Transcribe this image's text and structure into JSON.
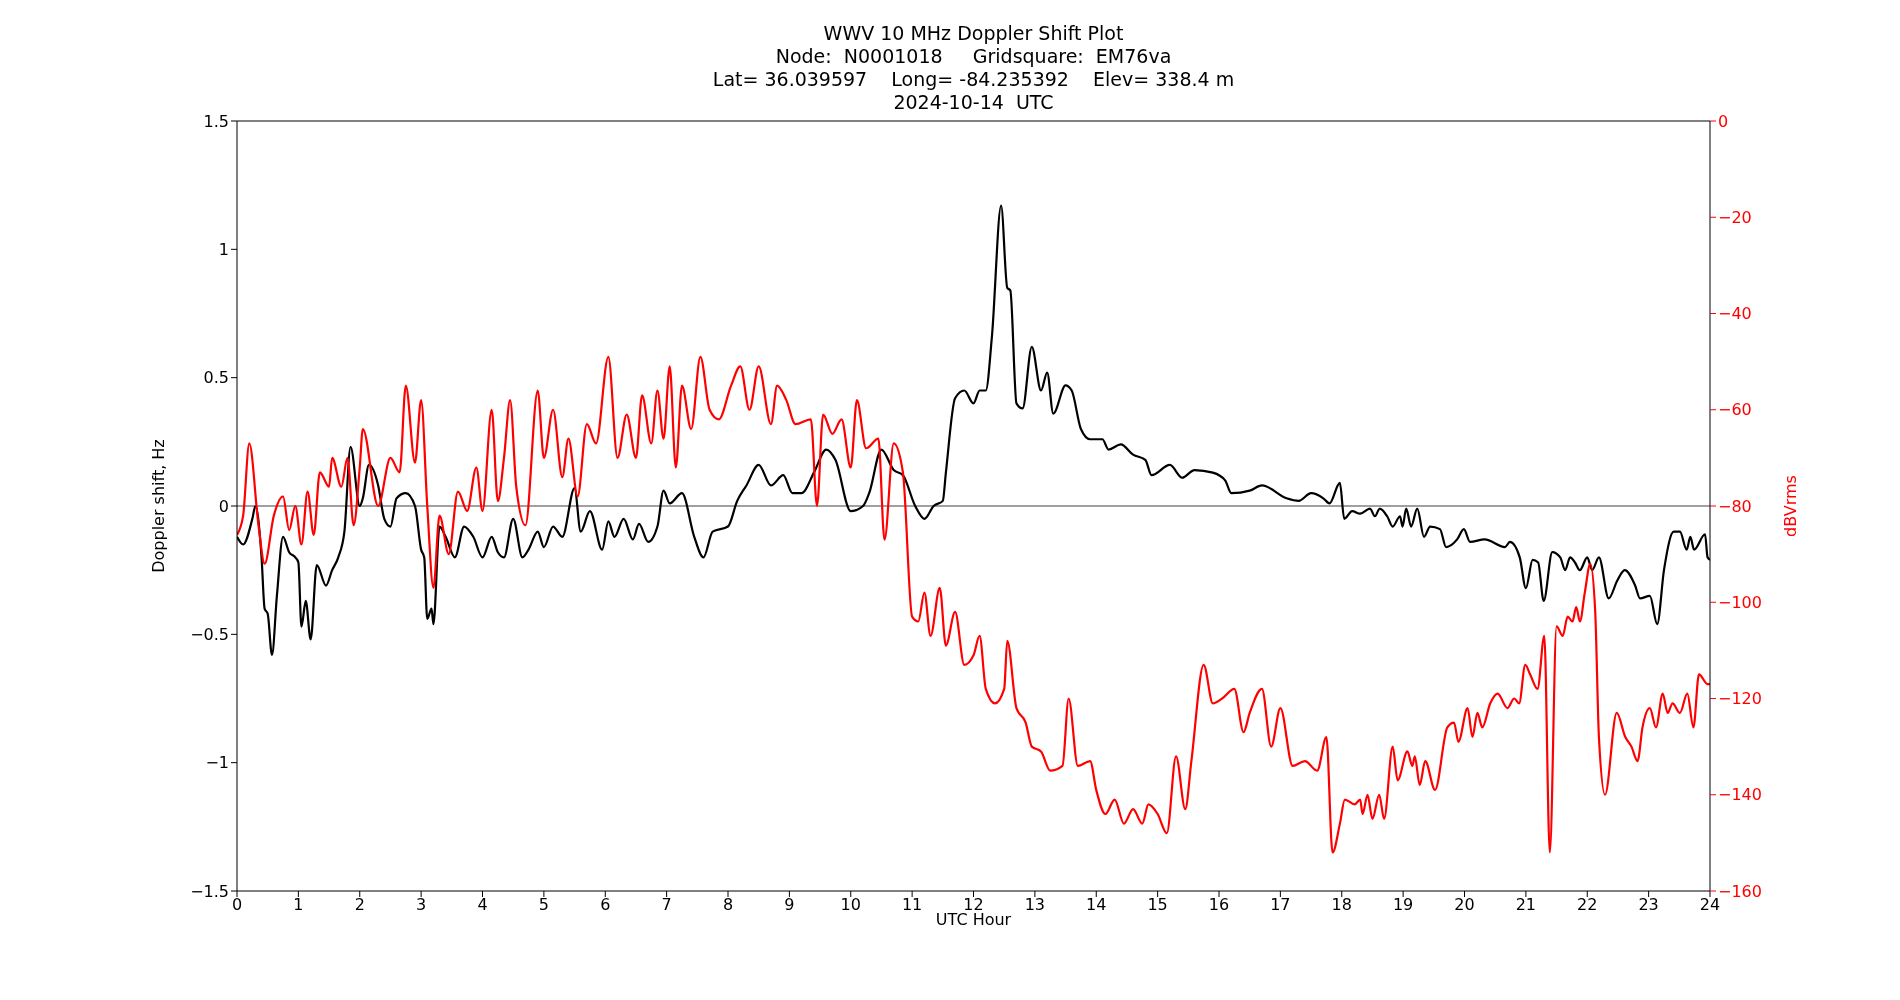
{
  "chart_data": {
    "type": "line",
    "title": "WWV 10 MHz Doppler Shift Plot\nNode:  N0001018     Gridsquare:  EM76va\nLat= 36.039597    Long= -84.235392    Elev= 338.4 m\n2024-10-14  UTC",
    "xlabel": "UTC Hour",
    "ylabel": "Doppler shift, Hz",
    "y2label": "dBVrms",
    "xlim": [
      0,
      24
    ],
    "xticks": [
      0,
      1,
      2,
      3,
      4,
      5,
      6,
      7,
      8,
      9,
      10,
      11,
      12,
      13,
      14,
      15,
      16,
      17,
      18,
      19,
      20,
      21,
      22,
      23,
      24
    ],
    "ylim": [
      -1.5,
      1.5
    ],
    "yticks": [
      -1.5,
      -1,
      -0.5,
      0,
      0.5,
      1,
      1.5
    ],
    "y2lim": [
      -160,
      0
    ],
    "y2ticks": [
      -160,
      -140,
      -120,
      -100,
      -80,
      -60,
      -40,
      -20,
      0
    ],
    "line_style": "solid",
    "ref_lines": [
      {
        "axis": "y",
        "value": 0,
        "color": "#808080"
      }
    ],
    "series": [
      {
        "color": "#000000",
        "x": [
          0,
          0.1,
          0.25,
          0.3,
          0.4,
          0.45,
          0.5,
          0.57,
          0.65,
          0.75,
          0.85,
          0.95,
          1,
          1.05,
          1.12,
          1.2,
          1.3,
          1.45,
          1.55,
          1.65,
          1.75,
          1.85,
          2,
          2.05,
          2.15,
          2.3,
          2.4,
          2.5,
          2.6,
          2.75,
          2.9,
          3,
          3.05,
          3.1,
          3.17,
          3.2,
          3.3,
          3.4,
          3.55,
          3.7,
          3.85,
          4,
          4.15,
          4.25,
          4.35,
          4.5,
          4.65,
          4.75,
          4.9,
          5,
          5.15,
          5.3,
          5.5,
          5.6,
          5.75,
          5.95,
          6.05,
          6.15,
          6.3,
          6.45,
          6.55,
          6.7,
          6.85,
          6.95,
          7.05,
          7.25,
          7.45,
          7.6,
          7.75,
          8,
          8.15,
          8.3,
          8.5,
          8.7,
          8.9,
          9.05,
          9.2,
          9.4,
          9.6,
          9.75,
          10,
          10.2,
          10.3,
          10.5,
          10.7,
          10.85,
          11.05,
          11.2,
          11.35,
          11.5,
          11.55,
          11.7,
          11.85,
          12,
          12.1,
          12.2,
          12.3,
          12.45,
          12.55,
          12.6,
          12.7,
          12.8,
          12.95,
          13.1,
          13.2,
          13.3,
          13.5,
          13.6,
          13.75,
          13.9,
          14.1,
          14.2,
          14.4,
          14.6,
          14.8,
          14.9,
          15.2,
          15.4,
          15.6,
          15.9,
          16.1,
          16.2,
          16.5,
          16.7,
          17.1,
          17.3,
          17.5,
          17.7,
          17.8,
          17.97,
          18.04,
          18.17,
          18.3,
          18.46,
          18.54,
          18.62,
          18.74,
          18.83,
          18.95,
          18.99,
          19.05,
          19.13,
          19.23,
          19.34,
          19.44,
          19.6,
          19.7,
          19.88,
          19.99,
          20.09,
          20.33,
          20.66,
          20.74,
          20.9,
          21,
          21.11,
          21.2,
          21.29,
          21.43,
          21.56,
          21.64,
          21.72,
          21.8,
          21.88,
          22,
          22.08,
          22.19,
          22.35,
          22.49,
          22.61,
          22.78,
          22.86,
          23.02,
          23.14,
          23.25,
          23.41,
          23.51,
          23.62,
          23.68,
          23.74,
          23.92,
          23.96,
          24
        ],
        "values": [
          -0.12,
          -0.15,
          -0.05,
          0,
          -0.2,
          -0.4,
          -0.42,
          -0.58,
          -0.35,
          -0.12,
          -0.18,
          -0.2,
          -0.22,
          -0.47,
          -0.37,
          -0.52,
          -0.23,
          -0.31,
          -0.25,
          -0.2,
          -0.1,
          0.23,
          0,
          0.03,
          0.16,
          0.08,
          -0.05,
          -0.08,
          0.03,
          0.05,
          0,
          -0.17,
          -0.2,
          -0.44,
          -0.4,
          -0.46,
          -0.08,
          -0.12,
          -0.2,
          -0.08,
          -0.12,
          -0.2,
          -0.12,
          -0.18,
          -0.2,
          -0.05,
          -0.2,
          -0.17,
          -0.1,
          -0.16,
          -0.08,
          -0.12,
          0.07,
          -0.1,
          -0.02,
          -0.17,
          -0.06,
          -0.12,
          -0.05,
          -0.13,
          -0.07,
          -0.14,
          -0.08,
          0.06,
          0.01,
          0.05,
          -0.12,
          -0.2,
          -0.1,
          -0.08,
          0.02,
          0.08,
          0.16,
          0.08,
          0.12,
          0.05,
          0.05,
          0.13,
          0.22,
          0.18,
          -0.02,
          0,
          0.05,
          0.22,
          0.14,
          0.12,
          0,
          -0.05,
          0,
          0.02,
          0.13,
          0.42,
          0.45,
          0.4,
          0.45,
          0.45,
          0.66,
          1.17,
          0.85,
          0.84,
          0.4,
          0.38,
          0.62,
          0.45,
          0.52,
          0.36,
          0.47,
          0.45,
          0.3,
          0.26,
          0.26,
          0.22,
          0.24,
          0.2,
          0.18,
          0.12,
          0.16,
          0.11,
          0.14,
          0.13,
          0.1,
          0.05,
          0.06,
          0.08,
          0.03,
          0.02,
          0.05,
          0.03,
          0.01,
          0.09,
          -0.05,
          -0.02,
          -0.03,
          -0.01,
          -0.04,
          -0.01,
          -0.04,
          -0.08,
          -0.04,
          -0.08,
          -0.01,
          -0.08,
          -0.01,
          -0.12,
          -0.08,
          -0.09,
          -0.16,
          -0.13,
          -0.09,
          -0.14,
          -0.13,
          -0.16,
          -0.14,
          -0.2,
          -0.32,
          -0.21,
          -0.22,
          -0.37,
          -0.18,
          -0.2,
          -0.25,
          -0.2,
          -0.22,
          -0.25,
          -0.2,
          -0.25,
          -0.2,
          -0.36,
          -0.29,
          -0.25,
          -0.31,
          -0.36,
          -0.35,
          -0.46,
          -0.25,
          -0.1,
          -0.1,
          -0.17,
          -0.12,
          -0.17,
          -0.11,
          -0.2,
          -0.21
        ]
      },
      {
        "color": "#ff0000",
        "axis": "y2",
        "x": [
          0,
          0.1,
          0.2,
          0.35,
          0.45,
          0.6,
          0.75,
          0.85,
          0.95,
          1.05,
          1.15,
          1.25,
          1.35,
          1.5,
          1.55,
          1.7,
          1.8,
          1.9,
          2,
          2.05,
          2.3,
          2.5,
          2.65,
          2.75,
          2.9,
          3,
          3.1,
          3.2,
          3.3,
          3.45,
          3.6,
          3.75,
          3.9,
          4,
          4.15,
          4.25,
          4.35,
          4.45,
          4.55,
          4.7,
          4.9,
          5,
          5.15,
          5.3,
          5.4,
          5.55,
          5.7,
          5.85,
          6.05,
          6.2,
          6.35,
          6.5,
          6.6,
          6.75,
          6.85,
          6.95,
          7.05,
          7.15,
          7.25,
          7.4,
          7.55,
          7.7,
          7.85,
          8.05,
          8.2,
          8.35,
          8.5,
          8.7,
          8.8,
          8.95,
          9.1,
          9.35,
          9.45,
          9.55,
          9.7,
          9.85,
          10,
          10.1,
          10.25,
          10.45,
          10.55,
          10.7,
          10.85,
          11,
          11.1,
          11.2,
          11.3,
          11.45,
          11.55,
          11.7,
          11.85,
          12,
          12.1,
          12.2,
          12.35,
          12.5,
          12.55,
          12.7,
          12.85,
          12.95,
          13.1,
          13.25,
          13.45,
          13.55,
          13.7,
          13.9,
          14,
          14.15,
          14.3,
          14.45,
          14.6,
          14.75,
          14.85,
          15,
          15.15,
          15.3,
          15.45,
          15.55,
          15.75,
          15.9,
          16.05,
          16.25,
          16.4,
          16.5,
          16.7,
          16.85,
          17,
          17.2,
          17.4,
          17.6,
          17.75,
          17.85,
          17.97,
          18.05,
          18.21,
          18.3,
          18.34,
          18.42,
          18.5,
          18.61,
          18.69,
          18.83,
          18.91,
          19.07,
          19.15,
          19.19,
          19.27,
          19.36,
          19.52,
          19.72,
          19.83,
          19.9,
          20.05,
          20.13,
          20.21,
          20.29,
          20.42,
          20.54,
          20.7,
          20.81,
          20.89,
          20.99,
          21.07,
          21.19,
          21.3,
          21.39,
          21.5,
          21.6,
          21.68,
          21.76,
          21.82,
          21.88,
          21.96,
          22.05,
          22.13,
          22.19,
          22.29,
          22.48,
          22.62,
          22.72,
          22.82,
          22.9,
          23.02,
          23.12,
          23.23,
          23.31,
          23.39,
          23.51,
          23.63,
          23.73,
          23.82,
          23.96,
          24
        ],
        "values": [
          -86,
          -82,
          -67,
          -84,
          -92,
          -82,
          -78,
          -85,
          -80,
          -88,
          -77,
          -86,
          -73,
          -76,
          -70,
          -76,
          -70,
          -84,
          -72,
          -64,
          -80,
          -70,
          -73,
          -55,
          -71,
          -58,
          -80,
          -97,
          -82,
          -90,
          -77,
          -81,
          -72,
          -81,
          -60,
          -79,
          -70,
          -58,
          -76,
          -84,
          -56,
          -70,
          -60,
          -74,
          -66,
          -78,
          -63,
          -67,
          -49,
          -70,
          -61,
          -70,
          -57,
          -67,
          -56,
          -66,
          -51,
          -72,
          -55,
          -64,
          -49,
          -60,
          -62,
          -55,
          -51,
          -60,
          -51,
          -63,
          -55,
          -58,
          -63,
          -62,
          -80,
          -61,
          -65,
          -62,
          -72,
          -58,
          -68,
          -66,
          -87,
          -67,
          -73,
          -103,
          -104,
          -98,
          -107,
          -97,
          -109,
          -102,
          -113,
          -111,
          -107,
          -118,
          -121,
          -118,
          -108,
          -122,
          -125,
          -130,
          -131,
          -135,
          -134,
          -120,
          -134,
          -133,
          -139,
          -144,
          -141,
          -146,
          -143,
          -146,
          -142,
          -144,
          -148,
          -132,
          -143,
          -133,
          -113,
          -121,
          -120,
          -118,
          -127,
          -123,
          -118,
          -130,
          -122,
          -134,
          -133,
          -135,
          -128,
          -152,
          -146,
          -141,
          -142,
          -141,
          -144,
          -140,
          -145,
          -140,
          -145,
          -130,
          -137,
          -131,
          -134,
          -132,
          -138,
          -133,
          -139,
          -126,
          -125,
          -129,
          -122,
          -128,
          -123,
          -126,
          -121,
          -119,
          -122,
          -120,
          -121,
          -113,
          -115,
          -118,
          -107,
          -152,
          -105,
          -107,
          -103,
          -104,
          -101,
          -104,
          -98,
          -92,
          -102,
          -128,
          -140,
          -123,
          -128,
          -130,
          -133,
          -126,
          -122,
          -126,
          -119,
          -123,
          -121,
          -123,
          -119,
          -126,
          -115,
          -117,
          -117
        ]
      }
    ]
  }
}
